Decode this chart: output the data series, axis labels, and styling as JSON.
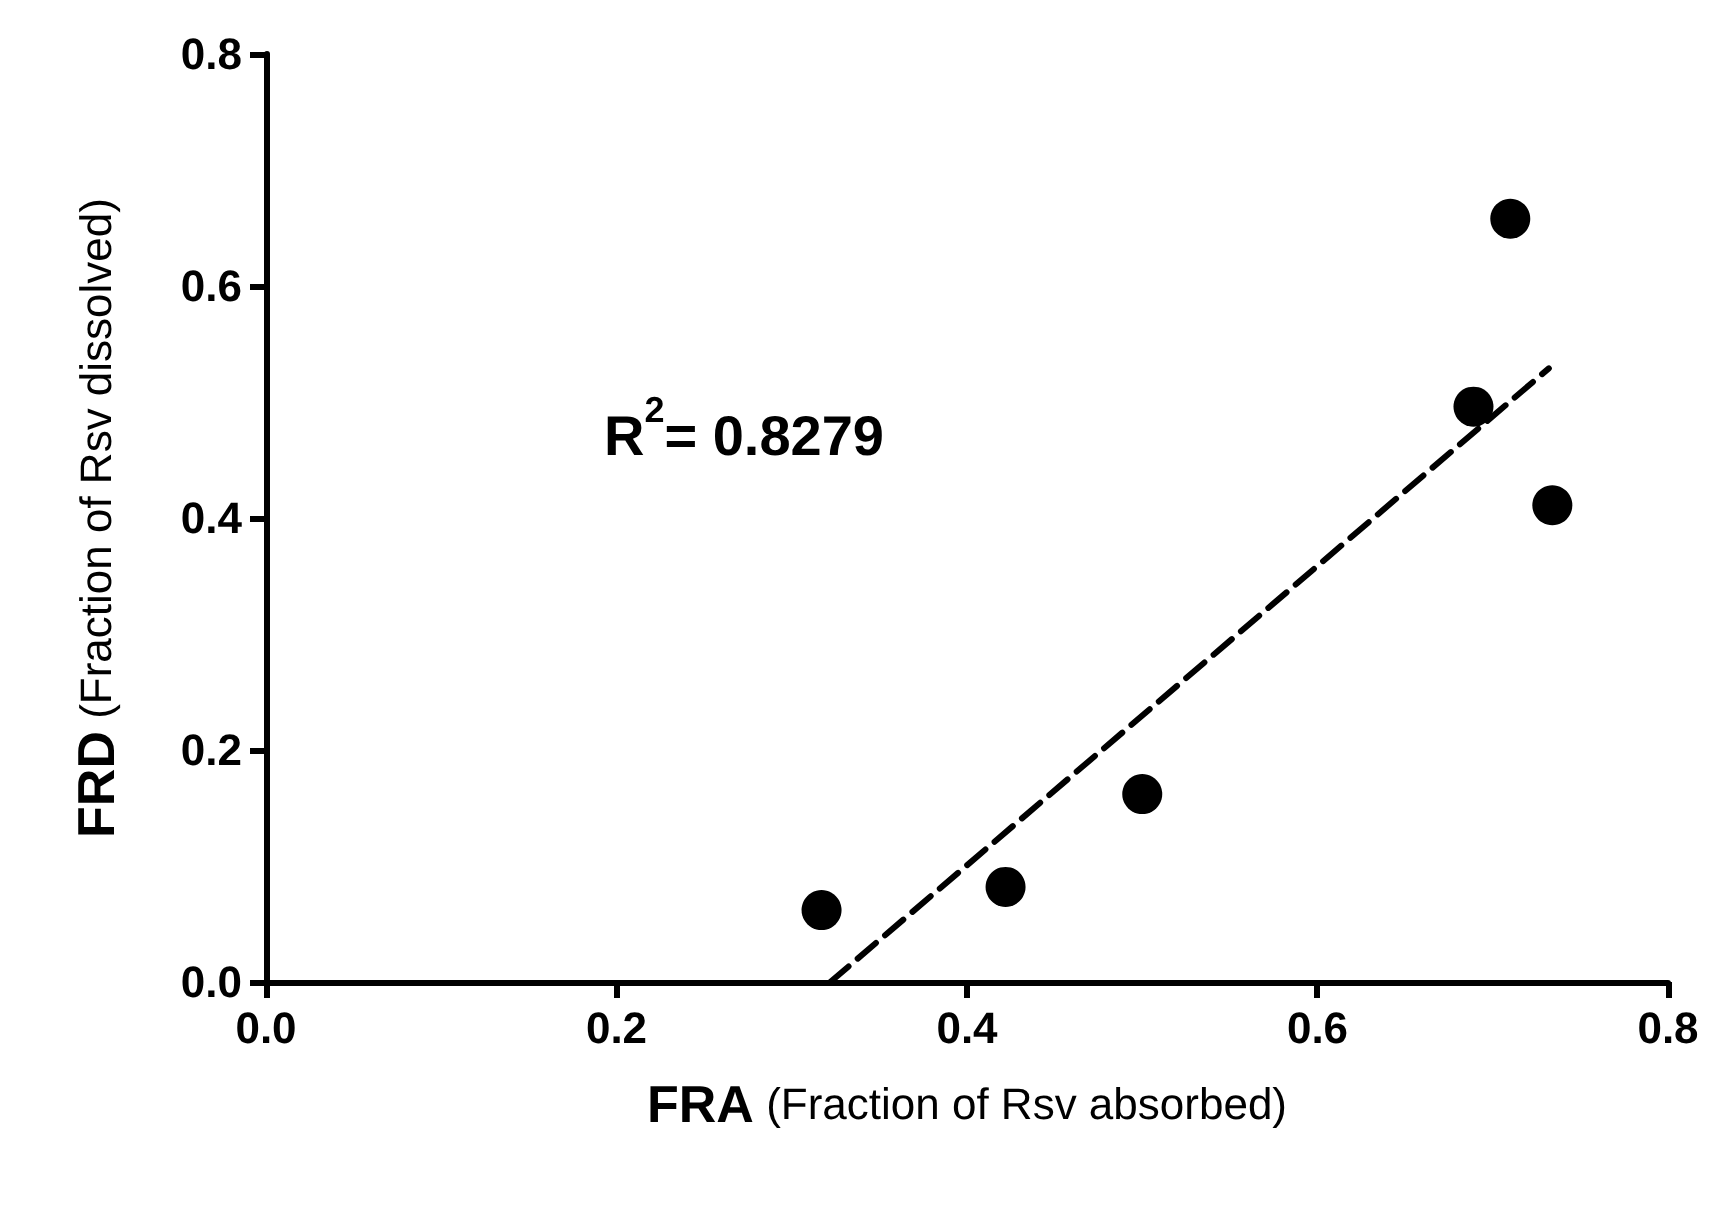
{
  "chart_data": {
    "type": "scatter",
    "xlabel": "FRA (Fraction of Rsv absorbed)",
    "ylabel": "FRD (Fraction of Rsv dissolved)",
    "annotations": [
      "R$^{2}$= 0.8279"
    ],
    "x": [
      0.317,
      0.422,
      0.5,
      0.689,
      0.71,
      0.734
    ],
    "series": [
      {
        "color": "#000000",
        "values": [
          0.062,
          0.082,
          0.162,
          0.496,
          0.658,
          0.411
        ]
      },
      {
        "type": "line",
        "color": "#000000",
        "line_style": "dashed",
        "marker": "none",
        "x": [
          0.322,
          0.732
        ],
        "values": [
          0,
          0.529
        ]
      }
    ],
    "marker": "circle",
    "xlim": [
      0,
      0.8
    ],
    "xticks": [
      "0.0",
      0.2,
      0.4,
      0.6,
      0.8
    ],
    "ylim": [
      0,
      0.8
    ],
    "yticks": [
      "0.0",
      0.2,
      0.4,
      0.6,
      0.8
    ],
    "grid": false
  }
}
